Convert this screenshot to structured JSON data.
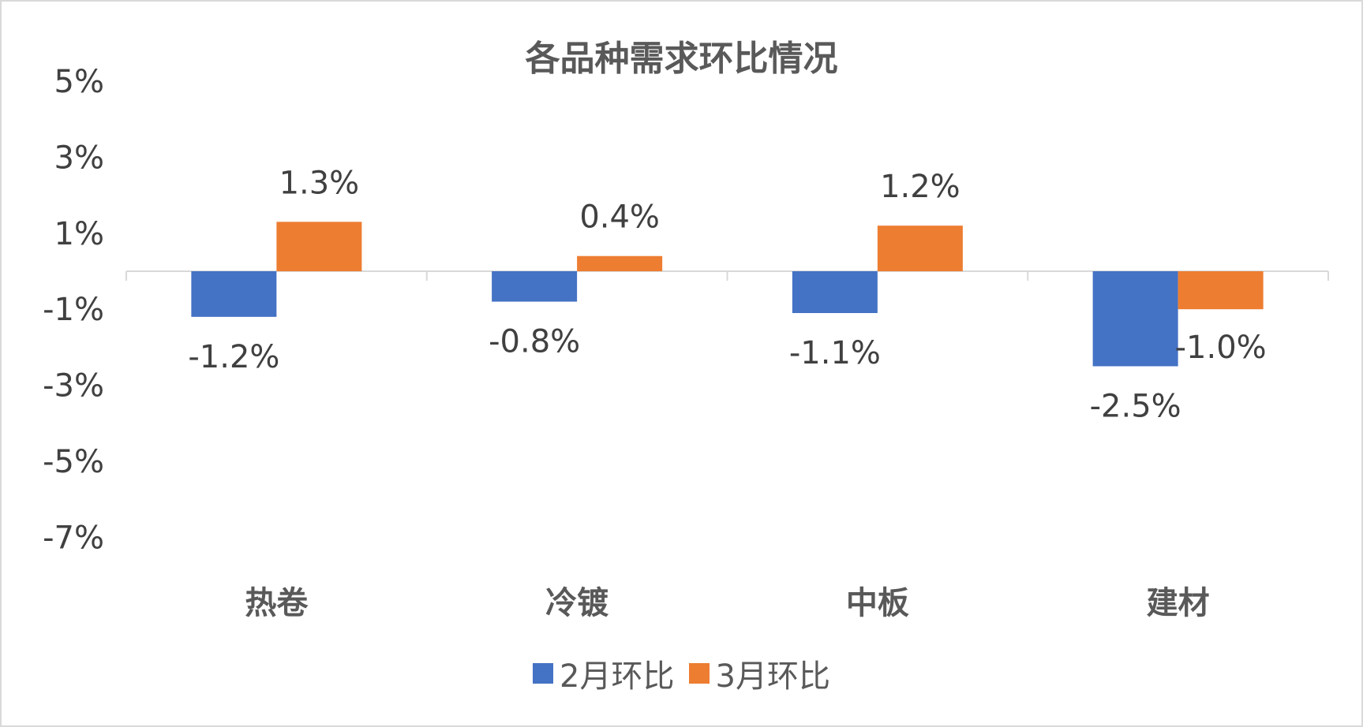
{
  "chart_data": {
    "type": "bar",
    "title": "各品种需求环比情况",
    "categories": [
      "热卷",
      "冷镀",
      "中板",
      "建材"
    ],
    "series": [
      {
        "name": "2月环比",
        "values": [
          -1.2,
          -0.8,
          -1.1,
          -2.5
        ],
        "labels": [
          "-1.2%",
          "-0.8%",
          "-1.1%",
          "-2.5%"
        ],
        "color": "#4472C4"
      },
      {
        "name": "3月环比",
        "values": [
          1.3,
          0.4,
          1.2,
          -1.0
        ],
        "labels": [
          "1.3%",
          "0.4%",
          "1.2%",
          "-1.0%"
        ],
        "color": "#ED7D31"
      }
    ],
    "yticks": [
      "5%",
      "3%",
      "1%",
      "-1%",
      "-3%",
      "-5%",
      "-7%"
    ],
    "ylim": [
      -7,
      5
    ],
    "xlabel": "",
    "ylabel": "",
    "legend_position": "bottom",
    "grid": false
  }
}
